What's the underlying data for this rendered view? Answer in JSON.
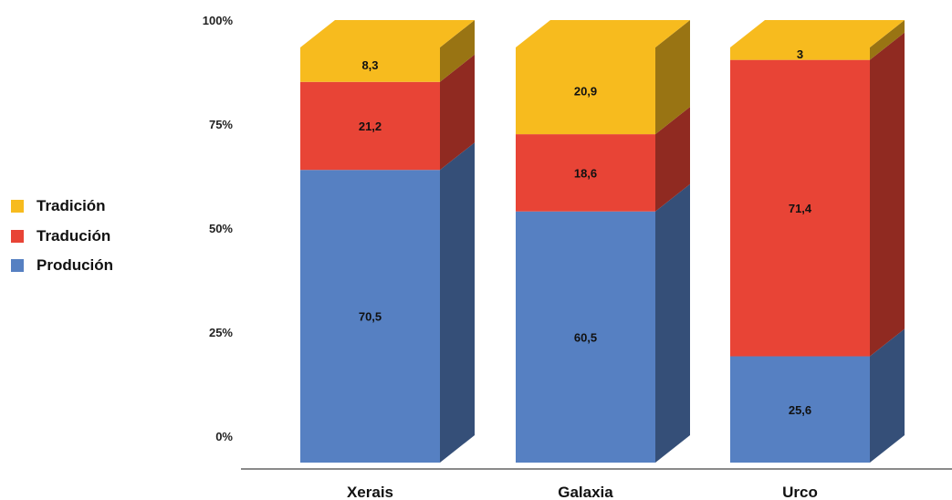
{
  "chart_data": {
    "type": "bar",
    "stacked": true,
    "percent": true,
    "three_d": true,
    "categories": [
      "Xerais",
      "Galaxia",
      "Urco"
    ],
    "series": [
      {
        "name": "Produción",
        "values": [
          70.5,
          60.5,
          25.6
        ],
        "color": "#5680c2",
        "value_labels": [
          "70,5",
          "60,5",
          "25,6"
        ]
      },
      {
        "name": "Tradución",
        "values": [
          21.2,
          18.6,
          71.4
        ],
        "color": "#e84436",
        "value_labels": [
          "21,2",
          "18,6",
          "71,4"
        ]
      },
      {
        "name": "Tradición",
        "values": [
          8.3,
          20.9,
          3
        ],
        "color": "#f7bb1e",
        "value_labels": [
          "8,3",
          "20,9",
          "3"
        ]
      }
    ],
    "ytick_labels": [
      "0%",
      "25%",
      "50%",
      "75%",
      "100%"
    ],
    "ylim": [
      0,
      100
    ],
    "legend_position": "left",
    "legend_order": [
      "Tradición",
      "Tradución",
      "Produción"
    ],
    "grid": false
  }
}
